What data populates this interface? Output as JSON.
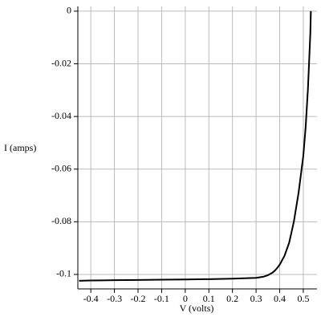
{
  "chart_data": {
    "type": "line",
    "x_label": "V (volts)",
    "y_label": "I (amps)",
    "x": [
      -0.45,
      -0.4,
      -0.3,
      -0.2,
      -0.1,
      0,
      0.1,
      0.2,
      0.3,
      0.33,
      0.35,
      0.37,
      0.38,
      0.39,
      0.4,
      0.42,
      0.44,
      0.46,
      0.48,
      0.5,
      0.51,
      0.52,
      0.53,
      0.532
    ],
    "series": [
      {
        "name": "I",
        "color": "#000000",
        "values": [
          -0.1024,
          -0.1023,
          -0.1022,
          -0.1021,
          -0.102,
          -0.1019,
          -0.1018,
          -0.1016,
          -0.1013,
          -0.1009,
          -0.1003,
          -0.0993,
          -0.0985,
          -0.0975,
          -0.0963,
          -0.093,
          -0.088,
          -0.08,
          -0.069,
          -0.055,
          -0.044,
          -0.029,
          -0.008,
          0
        ]
      }
    ],
    "xlim": [
      -0.455,
      0.558
    ],
    "ylim": [
      -0.1055,
      0.0018
    ],
    "xticks": [
      -0.4,
      -0.3,
      -0.2,
      -0.1,
      0,
      0.1,
      0.2,
      0.3,
      0.4,
      0.5
    ],
    "yticks": [
      0,
      -0.02,
      -0.04,
      -0.06,
      -0.08,
      -0.1
    ],
    "grid": true
  }
}
